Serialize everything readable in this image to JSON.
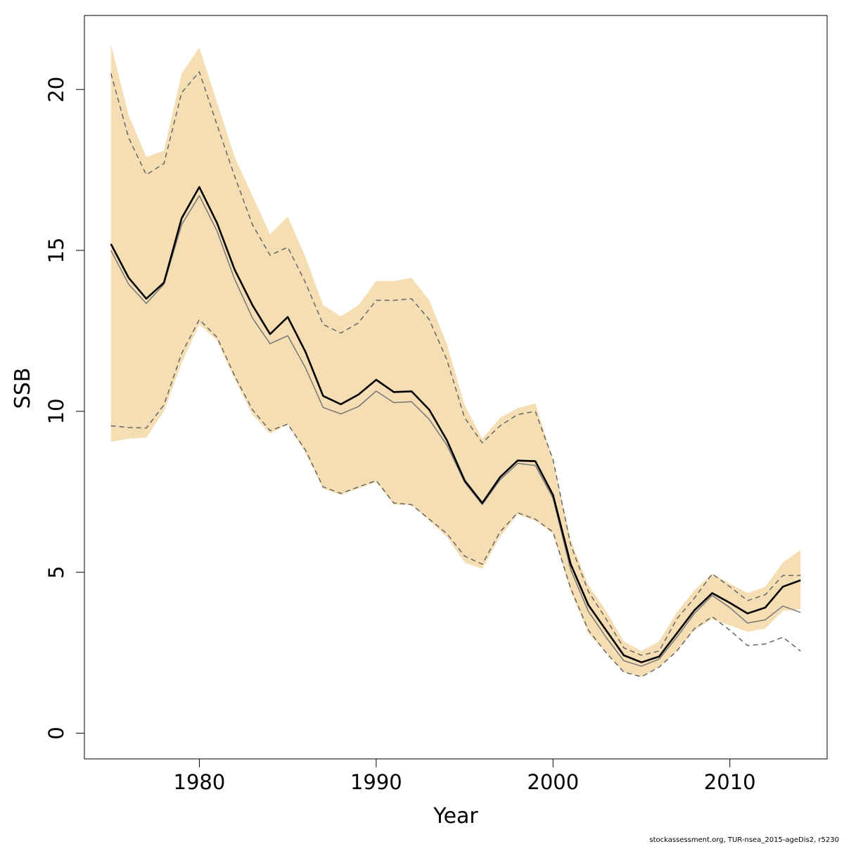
{
  "chart_data": {
    "type": "area",
    "xlabel": "Year",
    "ylabel": "SSB",
    "xlim": [
      1973.5,
      2015.5
    ],
    "ylim": [
      -0.8,
      22.3
    ],
    "x_ticks": [
      1980,
      1990,
      2000,
      2010
    ],
    "x_tick_labels": [
      "1980",
      "1990",
      "2000",
      "2010"
    ],
    "y_ticks": [
      0,
      5,
      10,
      15,
      20
    ],
    "y_tick_labels": [
      "0",
      "5",
      "10",
      "15",
      "20"
    ],
    "x": [
      1975,
      1976,
      1977,
      1978,
      1979,
      1980,
      1981,
      1982,
      1983,
      1984,
      1985,
      1986,
      1987,
      1988,
      1989,
      1990,
      1991,
      1992,
      1993,
      1994,
      1995,
      1996,
      1997,
      1998,
      1999,
      2000,
      2001,
      2002,
      2003,
      2004,
      2005,
      2006,
      2007,
      2008,
      2009,
      2010,
      2011,
      2012,
      2013,
      2014
    ],
    "band": {
      "color": "#f5deb3",
      "lower": [
        9.05,
        9.15,
        9.18,
        10.0,
        11.5,
        12.7,
        12.2,
        11.0,
        9.9,
        9.3,
        9.6,
        8.7,
        7.6,
        7.4,
        7.6,
        7.8,
        7.1,
        7.1,
        6.6,
        6.1,
        5.3,
        5.1,
        6.1,
        6.8,
        6.6,
        6.2,
        4.4,
        3.1,
        2.5,
        1.9,
        1.75,
        2.05,
        2.55,
        3.2,
        3.55,
        3.35,
        3.15,
        3.25,
        3.8,
        3.85
      ],
      "upper": [
        21.4,
        19.2,
        17.9,
        18.1,
        20.5,
        21.3,
        19.6,
        17.9,
        16.7,
        15.5,
        16.05,
        14.8,
        13.3,
        12.95,
        13.3,
        14.05,
        14.05,
        14.15,
        13.45,
        12.1,
        10.2,
        9.15,
        9.8,
        10.1,
        10.25,
        8.5,
        6.0,
        4.6,
        3.8,
        2.85,
        2.55,
        2.85,
        3.75,
        4.45,
        4.95,
        4.65,
        4.35,
        4.55,
        5.3,
        5.7
      ]
    },
    "series": [
      {
        "color": "#000000",
        "style": "solid",
        "values": [
          15.2,
          14.15,
          13.5,
          14.0,
          16.0,
          16.97,
          15.85,
          14.4,
          13.3,
          12.4,
          12.93,
          11.85,
          10.48,
          10.22,
          10.52,
          10.98,
          10.6,
          10.62,
          10.05,
          9.1,
          7.85,
          7.15,
          7.95,
          8.47,
          8.45,
          7.4,
          5.25,
          3.98,
          3.2,
          2.42,
          2.2,
          2.38,
          3.1,
          3.82,
          4.35,
          4.05,
          3.72,
          3.9,
          4.55,
          4.75
        ]
      },
      {
        "color": "#777777",
        "style": "solid",
        "values": [
          15.0,
          13.95,
          13.35,
          13.95,
          15.8,
          16.7,
          15.6,
          14.1,
          12.9,
          12.1,
          12.35,
          11.35,
          10.12,
          9.92,
          10.15,
          10.63,
          10.27,
          10.3,
          9.75,
          8.95,
          7.8,
          7.1,
          7.87,
          8.38,
          8.32,
          7.3,
          5.08,
          3.78,
          2.98,
          2.25,
          2.08,
          2.3,
          2.98,
          3.72,
          4.28,
          3.9,
          3.42,
          3.52,
          3.95,
          3.75
        ]
      },
      {
        "color": "#666666",
        "style": "dashed",
        "values": [
          20.5,
          18.5,
          17.35,
          17.7,
          19.9,
          20.55,
          18.9,
          17.3,
          15.8,
          14.85,
          15.1,
          14.0,
          12.7,
          12.43,
          12.75,
          13.45,
          13.45,
          13.5,
          12.85,
          11.6,
          9.8,
          9.02,
          9.55,
          9.9,
          10.0,
          8.5,
          5.85,
          4.4,
          3.55,
          2.65,
          2.42,
          2.55,
          3.55,
          4.2,
          4.95,
          4.55,
          4.12,
          4.3,
          4.9,
          4.9
        ]
      },
      {
        "color": "#666666",
        "style": "dashed",
        "values": [
          9.55,
          9.5,
          9.48,
          10.2,
          11.8,
          12.85,
          12.3,
          11.1,
          10.05,
          9.4,
          9.6,
          8.8,
          7.65,
          7.45,
          7.65,
          7.85,
          7.15,
          7.1,
          6.65,
          6.2,
          5.5,
          5.25,
          6.25,
          6.85,
          6.65,
          6.25,
          4.5,
          3.2,
          2.5,
          1.9,
          1.75,
          2.05,
          2.55,
          3.25,
          3.62,
          3.2,
          2.72,
          2.77,
          2.98,
          2.55
        ]
      }
    ],
    "grid": false
  },
  "footnote": "stockassessment.org, TUR-nsea_2015-ageDis2, r5230"
}
